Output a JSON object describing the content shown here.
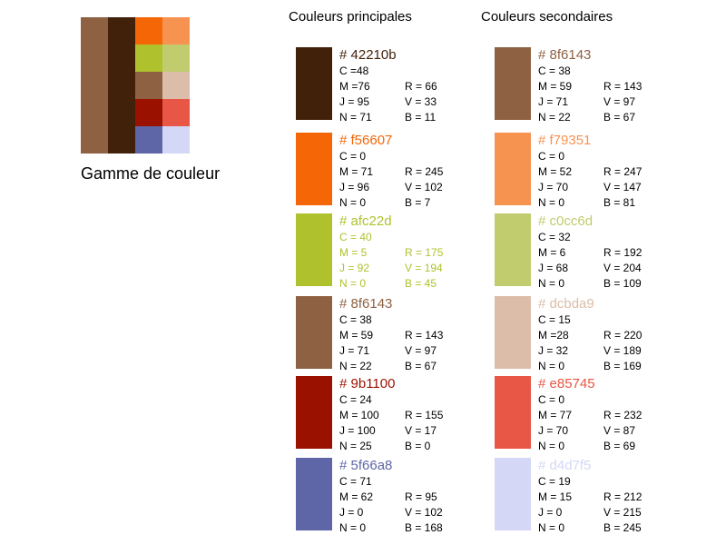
{
  "gamme_title": "Gamme de couleur",
  "palette": {
    "col1": "#8f6143",
    "col2": "#42210b",
    "grid": [
      [
        "#f56607",
        "#f79351"
      ],
      [
        "#afc22d",
        "#c0cc6d"
      ],
      [
        "#8f6143",
        "#dcbda9"
      ],
      [
        "#9b1100",
        "#e85745"
      ],
      [
        "#5f66a8",
        "#d4d7f5"
      ]
    ]
  },
  "primary": {
    "title": "Couleurs principales",
    "swatches": [
      {
        "color": "#42210b",
        "text_color": "#42210b",
        "body_color": "#000000",
        "hex": "# 42210b",
        "c": "C =48",
        "m": "M =76",
        "j": "J = 95",
        "n": "N = 71",
        "r": "R = 66",
        "v": "V = 33",
        "b": "B = 11"
      },
      {
        "color": "#f56607",
        "text_color": "#f56607",
        "body_color": "#000000",
        "hex": "# f56607",
        "c": "C = 0",
        "m": "M = 71",
        "j": "J = 96",
        "n": "N = 0",
        "r": "R = 245",
        "v": "V = 102",
        "b": "B = 7"
      },
      {
        "color": "#afc22d",
        "text_color": "#afc22d",
        "body_color": "#afc22d",
        "hex": "# afc22d",
        "c": "C = 40",
        "m": "M = 5",
        "j": "J = 92",
        "n": "N = 0",
        "r": "R = 175",
        "v": "V = 194",
        "b": "B = 45"
      },
      {
        "color": "#8f6143",
        "text_color": "#8f6143",
        "body_color": "#000000",
        "hex": "# 8f6143",
        "c": "C = 38",
        "m": "M = 59",
        "j": "J = 71",
        "n": "N = 22",
        "r": "R = 143",
        "v": "V = 97",
        "b": "B = 67"
      },
      {
        "color": "#9b1100",
        "text_color": "#9b1100",
        "body_color": "#000000",
        "hex": "# 9b1100",
        "c": "C = 24",
        "m": "M = 100",
        "j": "J = 100",
        "n": "N = 25",
        "r": "R = 155",
        "v": "V = 17",
        "b": "B = 0"
      },
      {
        "color": "#5f66a8",
        "text_color": "#5f66a8",
        "body_color": "#000000",
        "hex": "# 5f66a8",
        "c": "C = 71",
        "m": "M = 62",
        "j": "J =  0",
        "n": "N = 0",
        "r": "R = 95",
        "v": "V = 102",
        "b": "B = 168"
      }
    ]
  },
  "secondary": {
    "title": "Couleurs secondaires",
    "swatches": [
      {
        "color": "#8f6143",
        "text_color": "#8f6143",
        "body_color": "#000000",
        "hex": "# 8f6143",
        "c": "C = 38",
        "m": "M = 59",
        "j": "J = 71",
        "n": "N = 22",
        "r": "R = 143",
        "v": "V = 97",
        "b": "B = 67"
      },
      {
        "color": "#f79351",
        "text_color": "#f79351",
        "body_color": "#000000",
        "hex": "# f79351",
        "c": "C = 0",
        "m": "M = 52",
        "j": "J = 70",
        "n": "N = 0",
        "r": "R = 247",
        "v": "V = 147",
        "b": "B = 81"
      },
      {
        "color": "#c0cc6d",
        "text_color": "#c0cc6d",
        "body_color": "#000000",
        "hex": "# c0cc6d",
        "c": "C = 32",
        "m": "M = 6",
        "j": "J = 68",
        "n": "N = 0",
        "r": "R = 192",
        "v": "V = 204",
        "b": "B = 109"
      },
      {
        "color": "#dcbda9",
        "text_color": "#dcbda9",
        "body_color": "#000000",
        "hex": "# dcbda9",
        "c": "C = 15",
        "m": "M =28",
        "j": "J = 32",
        "n": "N = 0",
        "r": "R = 220",
        "v": "V = 189",
        "b": "B = 169"
      },
      {
        "color": "#e85745",
        "text_color": "#e85745",
        "body_color": "#000000",
        "hex": "# e85745",
        "c": "C = 0",
        "m": "M = 77",
        "j": "J = 70",
        "n": "N = 0",
        "r": "R = 232",
        "v": "V = 87",
        "b": "B = 69"
      },
      {
        "color": "#d4d7f5",
        "text_color": "#d4d7f5",
        "body_color": "#000000",
        "hex": "# d4d7f5",
        "c": "C = 19",
        "m": "M = 15",
        "j": "J = 0",
        "n": "N = 0",
        "r": "R = 212",
        "v": "V = 215",
        "b": "B = 245"
      }
    ]
  }
}
